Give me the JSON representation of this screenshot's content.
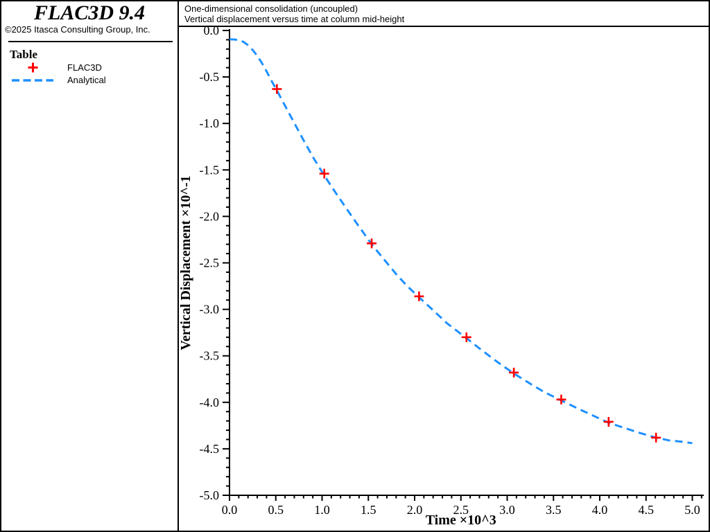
{
  "sidebar": {
    "brand": "FLAC3D 9.4",
    "copyright": "©2025 Itasca Consulting Group, Inc.",
    "legend_title": "Table"
  },
  "header": {
    "line1": "One-dimensional consolidation (uncoupled)",
    "line2": "Vertical displacement versus time at column mid-height"
  },
  "colors": {
    "flac3d_marker": "#ff0000",
    "analytical_line": "#1e90ff",
    "axis": "#000000"
  },
  "chart_data": {
    "type": "line",
    "title": "One-dimensional consolidation (uncoupled)",
    "subtitle": "Vertical displacement versus time at column mid-height",
    "xlabel": "Time ×10^3",
    "ylabel": "Vertical Displacement ×10^-1",
    "xlim": [
      0.0,
      5.0
    ],
    "ylim": [
      -5.0,
      0.0
    ],
    "x_ticks": [
      "0.0",
      "0.5",
      "1.0",
      "1.5",
      "2.0",
      "2.5",
      "3.0",
      "3.5",
      "4.0",
      "4.5",
      "5.0"
    ],
    "y_ticks": [
      "0.0",
      "-0.5",
      "-1.0",
      "-1.5",
      "-2.0",
      "-2.5",
      "-3.0",
      "-3.5",
      "-4.0",
      "-4.5",
      "-5.0"
    ],
    "minor_tick_step": 0.1,
    "grid": false,
    "legend_position": "left-sidebar",
    "series": [
      {
        "name": "FLAC3D",
        "type": "scatter",
        "marker": "plus",
        "color": "#ff0000",
        "points": [
          [
            0.512,
            -0.63
          ],
          [
            1.024,
            -1.54
          ],
          [
            1.536,
            -2.29
          ],
          [
            2.048,
            -2.86
          ],
          [
            2.56,
            -3.3
          ],
          [
            3.072,
            -3.68
          ],
          [
            3.584,
            -3.97
          ],
          [
            4.096,
            -4.21
          ],
          [
            4.608,
            -4.38
          ]
        ]
      },
      {
        "name": "Analytical",
        "type": "line",
        "style": "dashed",
        "color": "#1e90ff",
        "points": [
          [
            0.0,
            -0.095
          ],
          [
            0.05,
            -0.097
          ],
          [
            0.1,
            -0.103
          ],
          [
            0.15,
            -0.122
          ],
          [
            0.2,
            -0.158
          ],
          [
            0.25,
            -0.21
          ],
          [
            0.3,
            -0.272
          ],
          [
            0.35,
            -0.35
          ],
          [
            0.4,
            -0.438
          ],
          [
            0.45,
            -0.535
          ],
          [
            0.512,
            -0.645
          ],
          [
            0.6,
            -0.81
          ],
          [
            0.7,
            -0.995
          ],
          [
            0.8,
            -1.18
          ],
          [
            0.9,
            -1.36
          ],
          [
            1.024,
            -1.56
          ],
          [
            1.15,
            -1.75
          ],
          [
            1.28,
            -1.94
          ],
          [
            1.4,
            -2.11
          ],
          [
            1.536,
            -2.3
          ],
          [
            1.65,
            -2.44
          ],
          [
            1.8,
            -2.62
          ],
          [
            1.92,
            -2.75
          ],
          [
            2.048,
            -2.87
          ],
          [
            2.2,
            -3.01
          ],
          [
            2.35,
            -3.15
          ],
          [
            2.56,
            -3.31
          ],
          [
            2.7,
            -3.42
          ],
          [
            2.9,
            -3.57
          ],
          [
            3.072,
            -3.69
          ],
          [
            3.25,
            -3.8
          ],
          [
            3.4,
            -3.89
          ],
          [
            3.584,
            -3.98
          ],
          [
            3.75,
            -4.06
          ],
          [
            3.9,
            -4.13
          ],
          [
            4.096,
            -4.22
          ],
          [
            4.25,
            -4.27
          ],
          [
            4.4,
            -4.32
          ],
          [
            4.608,
            -4.38
          ],
          [
            4.75,
            -4.41
          ],
          [
            4.9,
            -4.425
          ],
          [
            5.0,
            -4.44
          ]
        ]
      }
    ]
  }
}
